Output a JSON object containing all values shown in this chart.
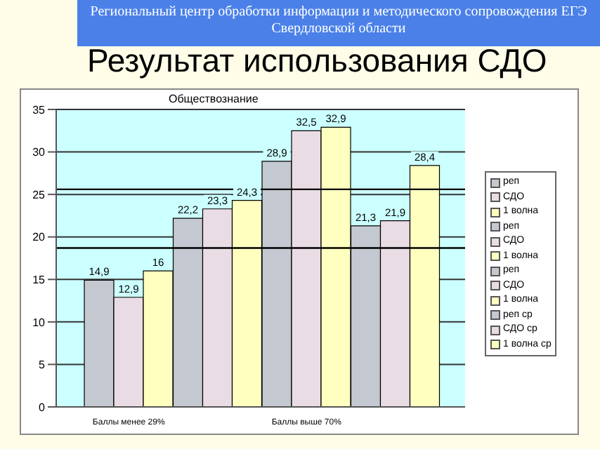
{
  "chart_data": {
    "type": "bar",
    "title": "Результат использования СДО",
    "subtitle": "Обществознание",
    "annotations": [
      "Региональный центр обработки информации и методического сопровождения ЕГЭ Свердловской области"
    ],
    "categories": [
      "Баллы менее 29%",
      null,
      "Баллы выше 70%",
      null
    ],
    "series": [
      {
        "name": "реп",
        "color": "#c4c8d0",
        "values": [
          14.9,
          null,
          null,
          null
        ],
        "value_labels": [
          "14,9",
          null,
          null,
          null
        ]
      },
      {
        "name": "СДО",
        "color": "#eadce4",
        "values": [
          12.9,
          null,
          null,
          null
        ],
        "value_labels": [
          "12,9",
          null,
          null,
          null
        ]
      },
      {
        "name": "1 волна",
        "color": "#ffffc0",
        "values": [
          16,
          null,
          null,
          null
        ],
        "value_labels": [
          "16",
          null,
          null,
          null
        ]
      },
      {
        "name": "реп",
        "color": "#c4c8d0",
        "values": [
          null,
          22.2,
          null,
          null
        ],
        "value_labels": [
          null,
          "22,2",
          null,
          null
        ]
      },
      {
        "name": "СДО",
        "color": "#eadce4",
        "values": [
          null,
          23.3,
          null,
          null
        ],
        "value_labels": [
          null,
          "23,3",
          null,
          null
        ]
      },
      {
        "name": "1 волна",
        "color": "#ffffc0",
        "values": [
          null,
          24.3,
          null,
          null
        ],
        "value_labels": [
          null,
          "24,3",
          null,
          null
        ]
      },
      {
        "name": "реп",
        "color": "#c4c8d0",
        "values": [
          null,
          null,
          28.9,
          null
        ],
        "value_labels": [
          null,
          null,
          "28,9",
          null
        ]
      },
      {
        "name": "СДО",
        "color": "#eadce4",
        "values": [
          null,
          null,
          32.5,
          null
        ],
        "value_labels": [
          null,
          null,
          "32,5",
          null
        ]
      },
      {
        "name": "1 волна",
        "color": "#ffffc0",
        "values": [
          null,
          null,
          32.9,
          null
        ],
        "value_labels": [
          null,
          null,
          "32,9",
          null
        ]
      },
      {
        "name": "реп ср",
        "color": "#c4c8d0",
        "values": [
          null,
          null,
          null,
          21.3
        ],
        "value_labels": [
          null,
          null,
          null,
          "21,3"
        ]
      },
      {
        "name": "СДО ср",
        "color": "#eadce4",
        "values": [
          null,
          null,
          null,
          21.9
        ],
        "value_labels": [
          null,
          null,
          null,
          "21,9"
        ]
      },
      {
        "name": "1 волна ср",
        "color": "#ffffc0",
        "values": [
          null,
          null,
          null,
          28.4
        ],
        "value_labels": [
          null,
          null,
          null,
          "28,4"
        ]
      }
    ],
    "ylim": [
      0,
      35
    ],
    "yticks": [
      0,
      5,
      10,
      15,
      20,
      25,
      30,
      35
    ],
    "grid": "y",
    "legend": "right",
    "ref_lines": [
      {
        "axis": "y",
        "value": 25.6,
        "color": "#000000"
      },
      {
        "axis": "y",
        "value": 18.7,
        "color": "#000000"
      }
    ]
  }
}
